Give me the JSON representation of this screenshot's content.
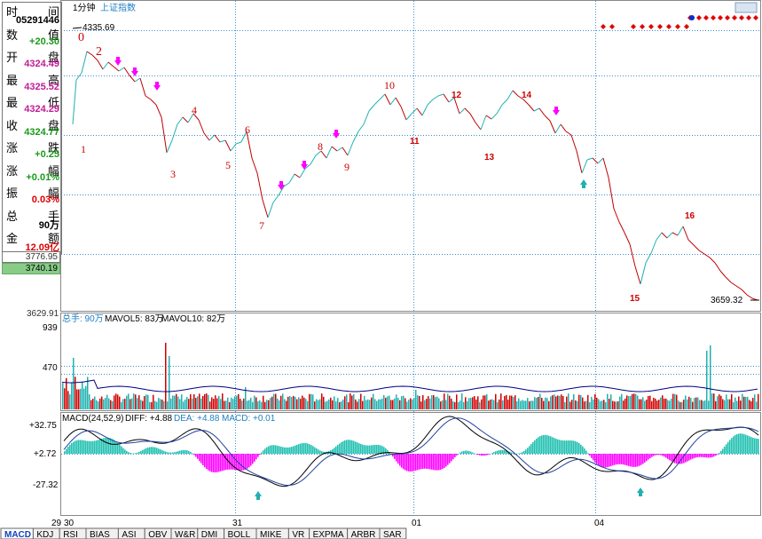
{
  "info_panel": {
    "rows": [
      {
        "label": "时",
        "label2": "间",
        "value": "05291446",
        "color": "#000"
      },
      {
        "label": "数",
        "label2": "值",
        "value": "+20.30",
        "color": "#1a9a1a"
      },
      {
        "label": "开",
        "label2": "盘",
        "value": "4324.49",
        "color": "#c21c96"
      },
      {
        "label": "最",
        "label2": "高",
        "value": "4325.52",
        "color": "#c21c96"
      },
      {
        "label": "最",
        "label2": "低",
        "value": "4324.29",
        "color": "#c21c96"
      },
      {
        "label": "收",
        "label2": "盘",
        "value": "4324.77",
        "color": "#1a9a1a"
      },
      {
        "label": "涨",
        "label2": "跌",
        "value": "+0.25",
        "color": "#1a9a1a"
      },
      {
        "label": "涨",
        "label2": "幅",
        "value": "+0.01%",
        "color": "#1a9a1a"
      },
      {
        "label": "振",
        "label2": "幅",
        "value": "0.03%",
        "color": "#d00"
      },
      {
        "label": "总",
        "label2": "手",
        "value": "90万",
        "color": "#000"
      },
      {
        "label": "金",
        "label2": "额",
        "value": "12.09亿",
        "color": "#d00"
      }
    ],
    "box1": "3776.95",
    "box2": "3740.19"
  },
  "header": {
    "period": "1分钟",
    "index_name": "上证指数"
  },
  "price_axis": {
    "top": "4335.69",
    "bottom_label": "3659.32",
    "low_axis": "3629.91"
  },
  "wave_labels": {
    "red_numbers": [
      "0",
      "1",
      "2",
      "3",
      "4",
      "5",
      "6",
      "7",
      "8",
      "9",
      "10",
      "11",
      "12",
      "13",
      "14",
      "15",
      "16"
    ]
  },
  "volume": {
    "title": "总手: 90万",
    "mavol5": "MAVOL5: 83万",
    "mavol10": "MAVOL10: 82万",
    "axis_top": "939",
    "axis_mid": "470"
  },
  "macd": {
    "title": "MACD(24,52,9)",
    "diff": "DIFF: +4.88",
    "dea": "DEA: +4.88",
    "macd": "MACD: +0.01",
    "axis_top": "+32.75",
    "axis_mid": "+2.72",
    "axis_bot": "-27.32"
  },
  "x_axis": {
    "labels": [
      "29",
      "30",
      "31",
      "01",
      "04"
    ]
  },
  "tabs": [
    "MACD",
    "KDJ",
    "RSI",
    "BIAS",
    "ASI",
    "OBV",
    "W&R",
    "DMI",
    "BOLL",
    "MIKE",
    "VR",
    "EXPMA",
    "ARBR",
    "SAR"
  ],
  "colors": {
    "up": "#d00000",
    "down": "#20b0b0",
    "grid": "#3a8fd0",
    "magenta": "#ff00ff",
    "line": "#000080"
  }
}
